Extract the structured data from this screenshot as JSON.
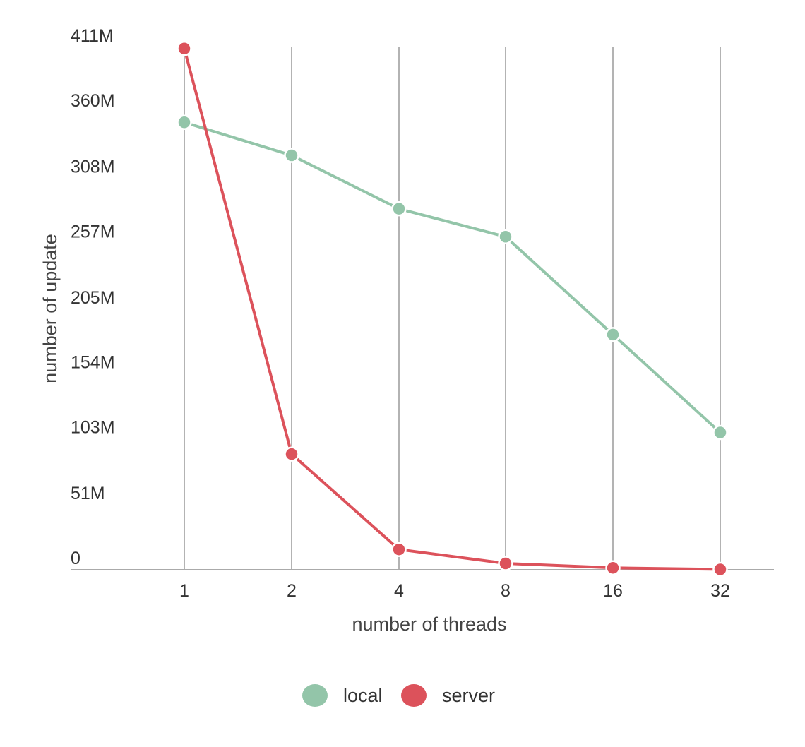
{
  "chart_data": {
    "type": "line",
    "title": "",
    "xlabel": "number of threads",
    "ylabel": "number of update",
    "categories": [
      "1",
      "2",
      "4",
      "8",
      "16",
      "32"
    ],
    "y_ticks": [
      "0",
      "51M",
      "103M",
      "154M",
      "205M",
      "257M",
      "308M",
      "360M",
      "411M"
    ],
    "y_tick_values": [
      0,
      51,
      103,
      154,
      205,
      257,
      308,
      360,
      411
    ],
    "ylim": [
      0,
      411
    ],
    "grid": "vertical",
    "legend_position": "bottom",
    "series": [
      {
        "name": "local",
        "color": "#93c5a9",
        "values": [
          352,
          326,
          284,
          262,
          185,
          108
        ]
      },
      {
        "name": "server",
        "color": "#dc525b",
        "values": [
          410,
          91,
          16,
          5,
          1.5,
          0.3
        ]
      }
    ]
  }
}
